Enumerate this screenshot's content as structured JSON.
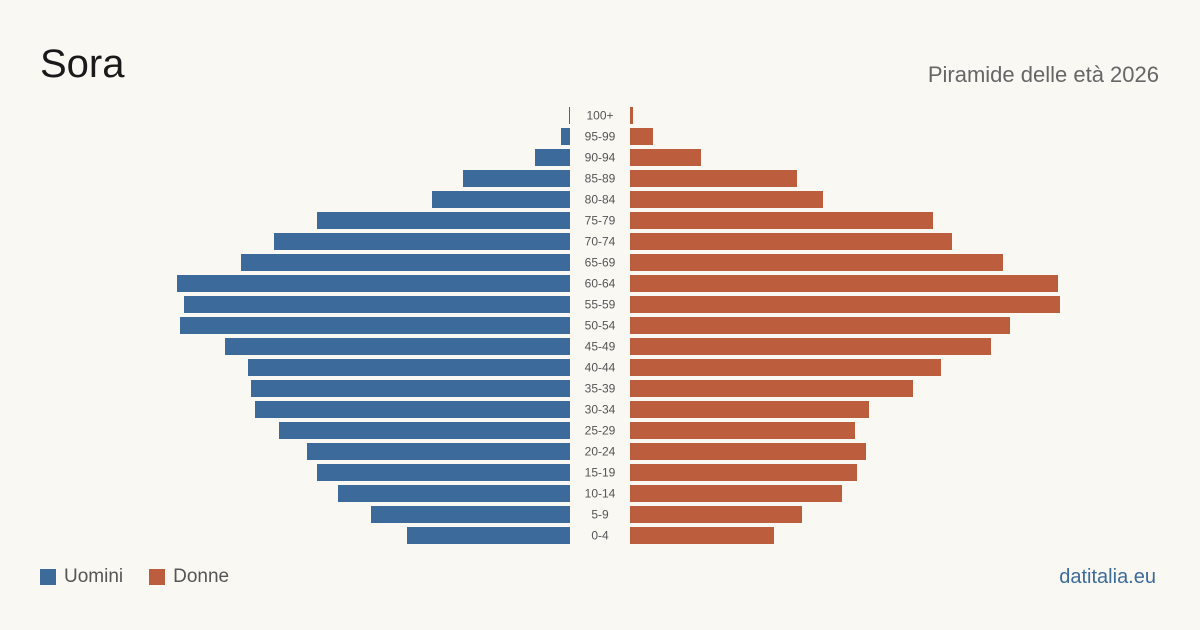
{
  "header": {
    "title": "Sora",
    "subtitle": "Piramide delle età 2026"
  },
  "legend": {
    "men_label": "Uomini",
    "women_label": "Donne"
  },
  "brand": "datitalia.eu",
  "colors": {
    "men": "#3b6a9b",
    "women": "#bc5e3d",
    "background": "#faf8f3"
  },
  "chart_data": {
    "type": "bar",
    "orientation": "horizontal-pyramid",
    "categories": [
      "100+",
      "95-99",
      "90-94",
      "85-89",
      "80-84",
      "75-79",
      "70-74",
      "65-69",
      "60-64",
      "55-59",
      "50-54",
      "45-49",
      "40-44",
      "35-39",
      "30-34",
      "25-29",
      "20-24",
      "15-19",
      "10-14",
      "5-9",
      "0-4"
    ],
    "series": [
      {
        "name": "Uomini",
        "side": "left",
        "values": [
          1,
          9,
          35,
          107,
          138,
          253,
          296,
          329,
          393,
          386,
          390,
          345,
          322,
          319,
          315,
          291,
          263,
          253,
          232,
          199,
          163
        ]
      },
      {
        "name": "Donne",
        "side": "right",
        "values": [
          3,
          23,
          71,
          167,
          193,
          303,
          322,
          373,
          428,
          430,
          380,
          361,
          311,
          283,
          239,
          225,
          236,
          227,
          212,
          172,
          144
        ]
      }
    ],
    "xlim": [
      0,
      440
    ],
    "grid": false,
    "legend_position": "bottom-left"
  }
}
